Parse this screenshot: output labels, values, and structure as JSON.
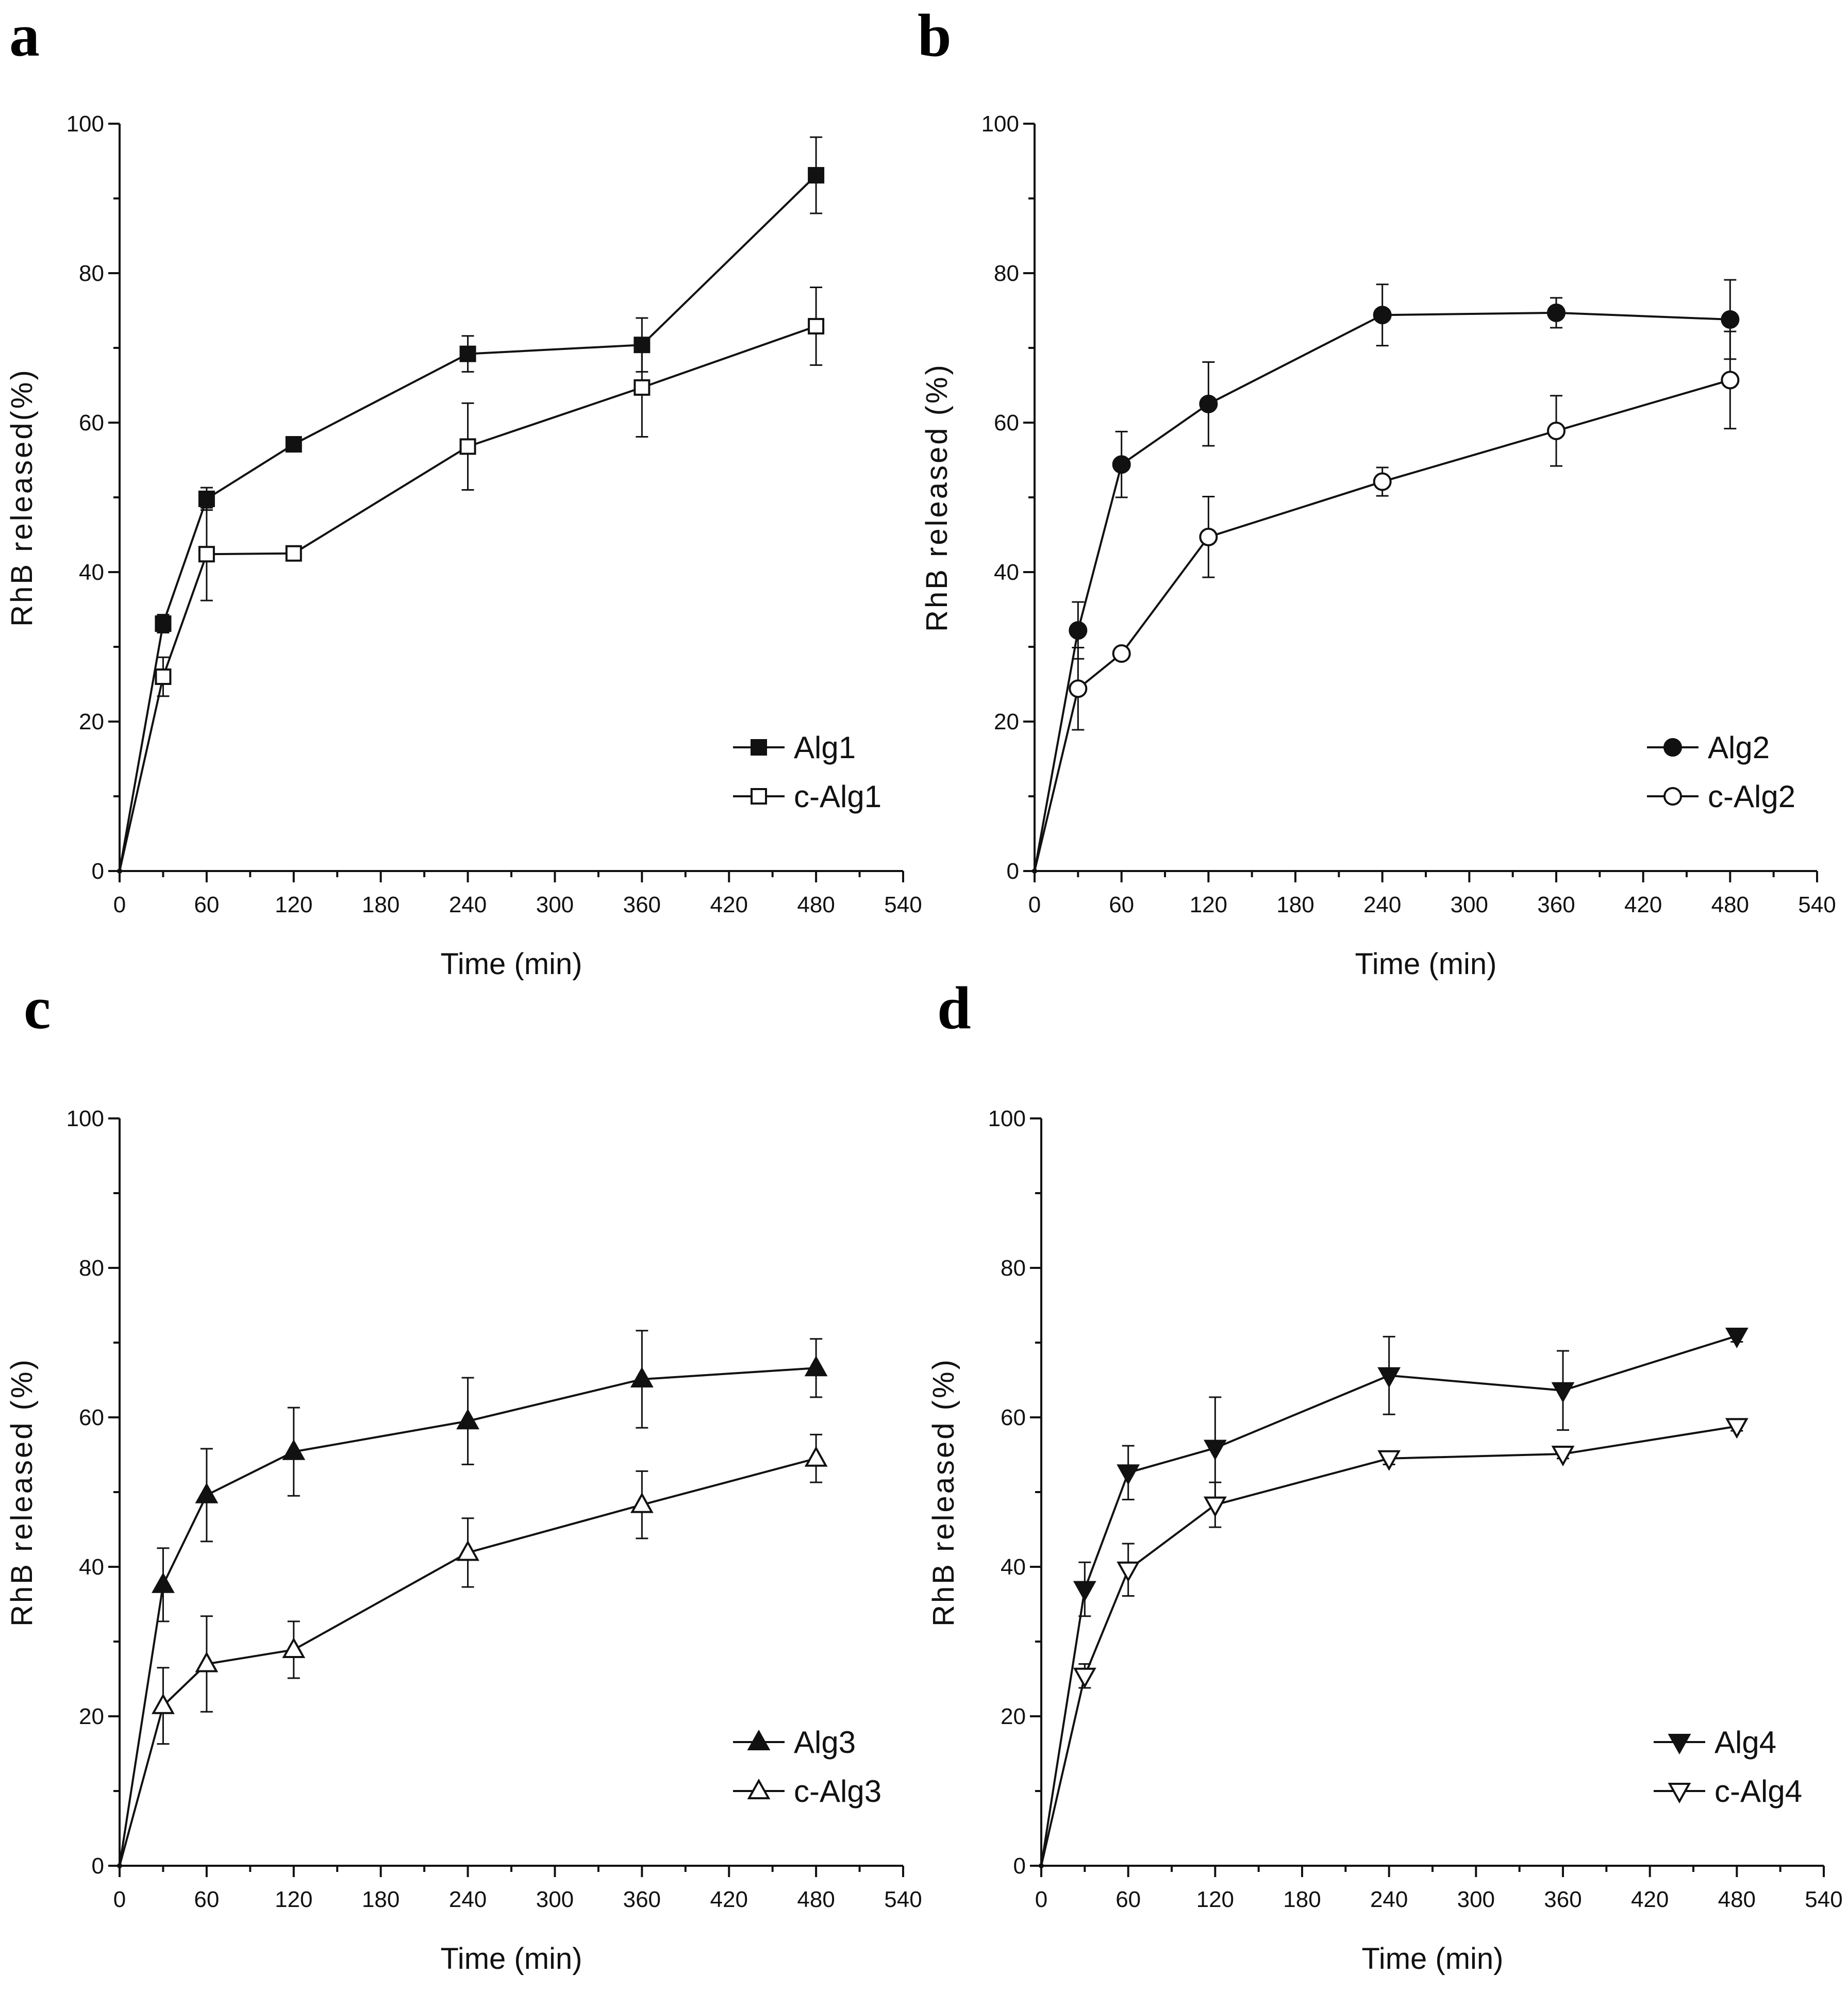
{
  "chart_data": [
    {
      "type": "line",
      "panel_label": "a",
      "xlabel": "Time (min)",
      "ylabel": "RhB released(%)",
      "xlim": [
        0,
        540
      ],
      "ylim": [
        0,
        100
      ],
      "xticks": [
        "0",
        "60",
        "120",
        "180",
        "240",
        "300",
        "360",
        "420",
        "480",
        "540"
      ],
      "yticks": [
        "0",
        "20",
        "40",
        "60",
        "80",
        "100"
      ],
      "grid": false,
      "legend_position": "bottom-right",
      "x": [
        0,
        30,
        60,
        120,
        240,
        360,
        480
      ],
      "series": [
        {
          "name": "Alg1",
          "marker": "square-filled",
          "values": [
            0,
            33.1,
            49.8,
            57.1,
            69.2,
            70.4,
            93.1
          ],
          "errors": [
            0,
            1.2,
            1.5,
            0.5,
            2.4,
            3.6,
            5.1
          ]
        },
        {
          "name": "c-Alg1",
          "marker": "square-open",
          "values": [
            0,
            26.0,
            42.4,
            42.5,
            56.8,
            64.7,
            72.9
          ],
          "errors": [
            0,
            2.6,
            6.2,
            0.6,
            5.8,
            6.6,
            5.2
          ]
        }
      ]
    },
    {
      "type": "line",
      "panel_label": "b",
      "xlabel": "Time (min)",
      "ylabel": "RhB released (%)",
      "xlim": [
        0,
        540
      ],
      "ylim": [
        0,
        100
      ],
      "xticks": [
        "0",
        "60",
        "120",
        "180",
        "240",
        "300",
        "360",
        "420",
        "480",
        "540"
      ],
      "yticks": [
        "0",
        "20",
        "40",
        "60",
        "80",
        "100"
      ],
      "grid": false,
      "legend_position": "bottom-right",
      "x": [
        0,
        30,
        60,
        120,
        240,
        360,
        480
      ],
      "series": [
        {
          "name": "Alg2",
          "marker": "circle-filled",
          "values": [
            0,
            32.2,
            54.4,
            62.5,
            74.4,
            74.7,
            73.8
          ],
          "errors": [
            0,
            3.8,
            4.4,
            5.6,
            4.1,
            2.0,
            5.3
          ]
        },
        {
          "name": "c-Alg2",
          "marker": "circle-open",
          "values": [
            0,
            24.4,
            29.1,
            44.7,
            52.1,
            58.9,
            65.7
          ],
          "errors": [
            0,
            5.5,
            0.5,
            5.4,
            1.9,
            4.7,
            6.5
          ]
        }
      ]
    },
    {
      "type": "line",
      "panel_label": "c",
      "xlabel": "Time (min)",
      "ylabel": "RhB released (%)",
      "xlim": [
        0,
        540
      ],
      "ylim": [
        0,
        100
      ],
      "xticks": [
        "0",
        "60",
        "120",
        "180",
        "240",
        "300",
        "360",
        "420",
        "480",
        "540"
      ],
      "yticks": [
        "0",
        "20",
        "40",
        "60",
        "80",
        "100"
      ],
      "grid": false,
      "legend_position": "bottom-right",
      "x": [
        0,
        30,
        60,
        120,
        240,
        360,
        480
      ],
      "series": [
        {
          "name": "Alg3",
          "marker": "triangle-up-filled",
          "values": [
            0,
            37.6,
            49.6,
            55.4,
            59.5,
            65.1,
            66.6
          ],
          "errors": [
            0,
            4.9,
            6.2,
            5.9,
            5.8,
            6.5,
            3.9
          ]
        },
        {
          "name": "c-Alg3",
          "marker": "triangle-up-open",
          "values": [
            0,
            21.4,
            27.0,
            28.9,
            41.9,
            48.3,
            54.5
          ],
          "errors": [
            0,
            5.1,
            6.4,
            3.8,
            4.6,
            4.5,
            3.2
          ]
        }
      ]
    },
    {
      "type": "line",
      "panel_label": "d",
      "xlabel": "Time (min)",
      "ylabel": "RhB released (%)",
      "xlim": [
        0,
        540
      ],
      "ylim": [
        0,
        100
      ],
      "xticks": [
        "0",
        "60",
        "120",
        "180",
        "240",
        "300",
        "360",
        "420",
        "480",
        "540"
      ],
      "yticks": [
        "0",
        "20",
        "40",
        "60",
        "80",
        "100"
      ],
      "grid": false,
      "legend_position": "bottom-right",
      "x": [
        0,
        30,
        60,
        120,
        240,
        360,
        480
      ],
      "series": [
        {
          "name": "Alg4",
          "marker": "triangle-down-filled",
          "values": [
            0,
            37.0,
            52.6,
            55.9,
            65.6,
            63.6,
            70.9
          ],
          "errors": [
            0,
            3.6,
            3.6,
            6.8,
            5.2,
            5.3,
            0.8
          ]
        },
        {
          "name": "c-Alg4",
          "marker": "triangle-down-open",
          "values": [
            0,
            25.4,
            39.6,
            48.3,
            54.5,
            55.1,
            58.8
          ],
          "errors": [
            0,
            1.6,
            3.5,
            3.0,
            0.8,
            0.6,
            0.6
          ]
        }
      ]
    }
  ]
}
